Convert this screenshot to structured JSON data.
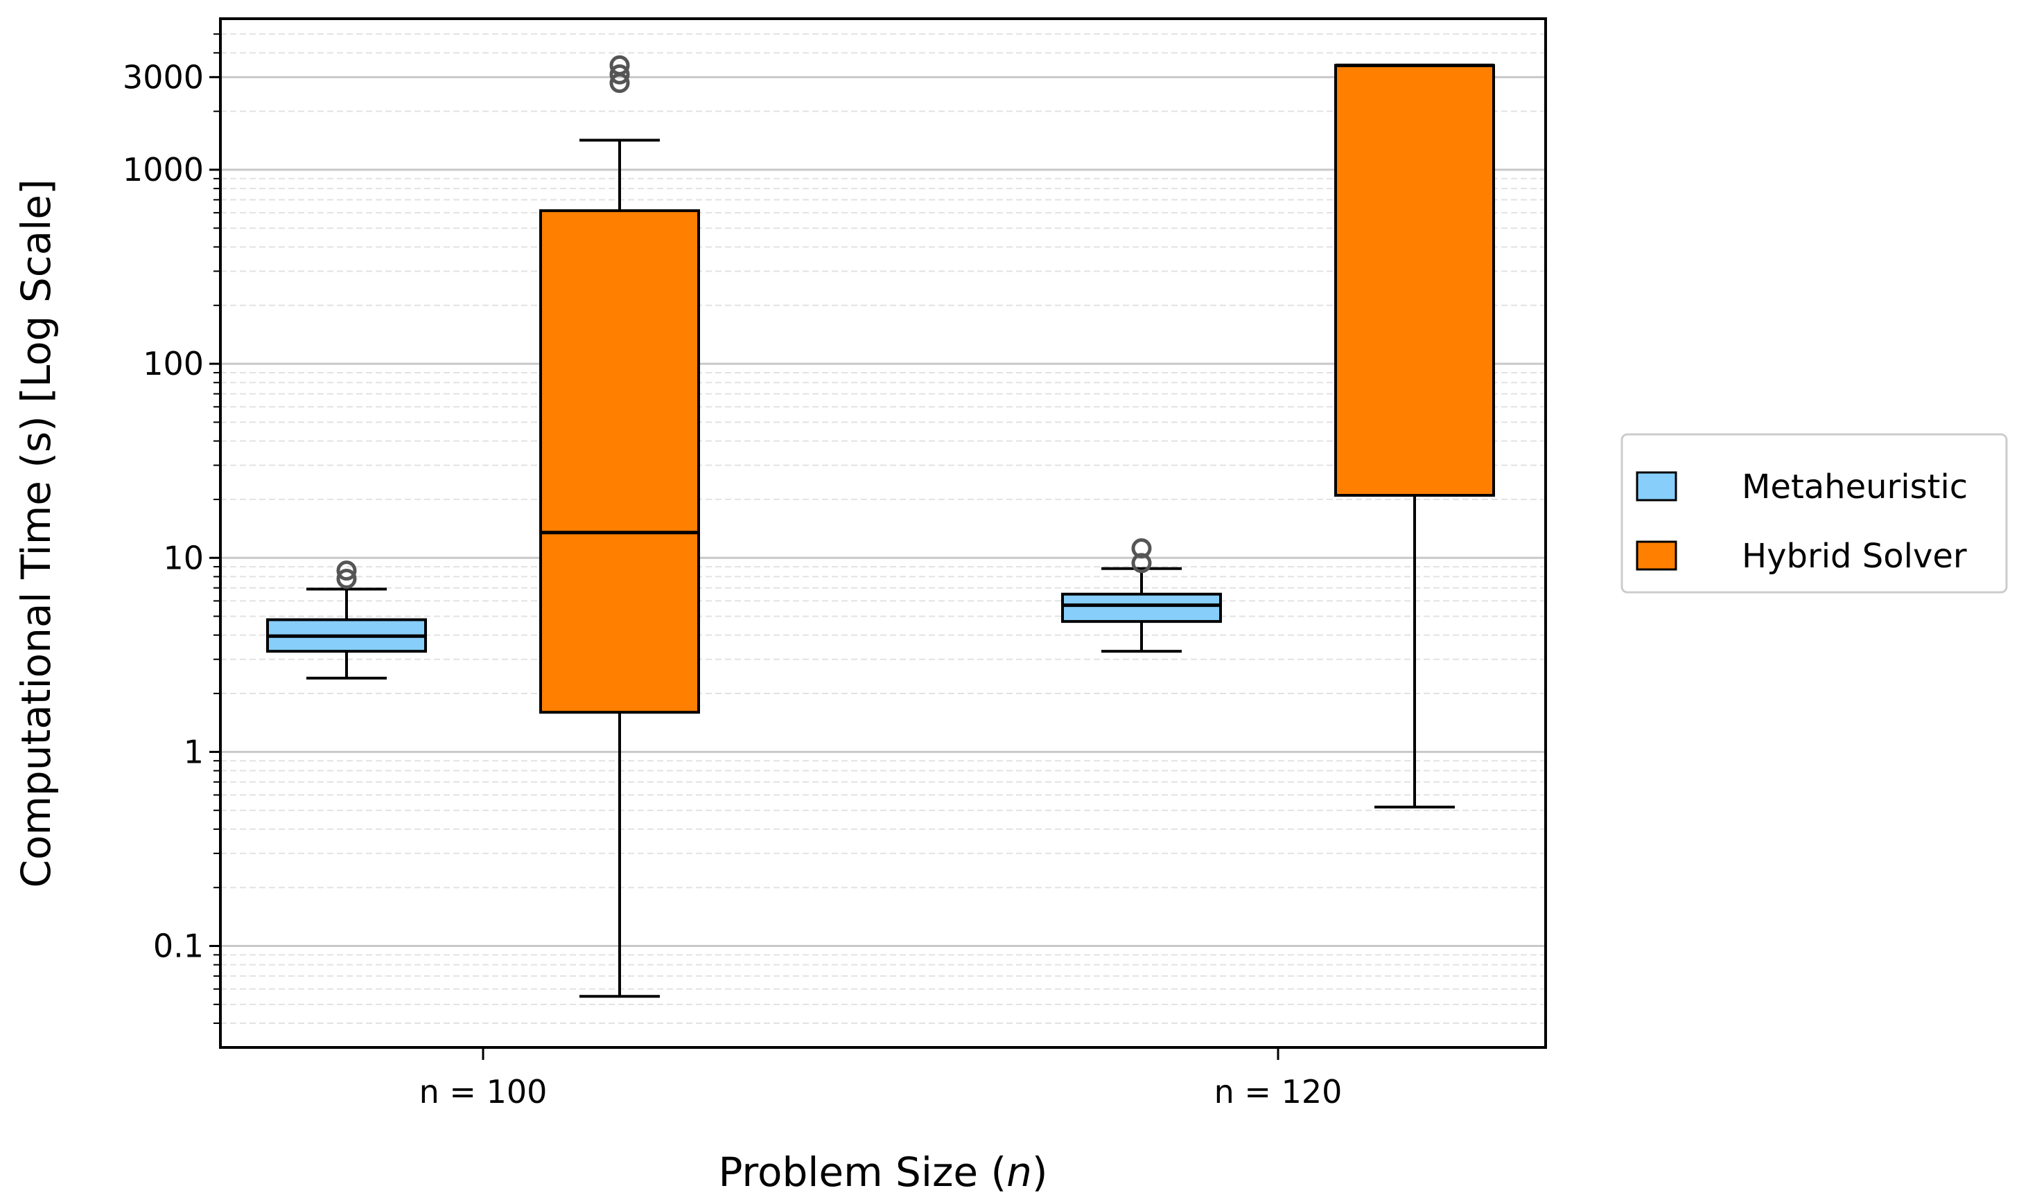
{
  "chart_data": {
    "type": "box",
    "xlabel_prefix": "Problem Size (",
    "xlabel_var": "n",
    "xlabel_suffix": ")",
    "ylabel": "Computational Time (s) [Log Scale]",
    "yscale": "log",
    "ylim": [
      0.03,
      6000
    ],
    "yticks": [
      {
        "value": 0.1,
        "label": "0.1"
      },
      {
        "value": 1,
        "label": "1"
      },
      {
        "value": 10,
        "label": "10"
      },
      {
        "value": 100,
        "label": "100"
      },
      {
        "value": 1000,
        "label": "1000"
      },
      {
        "value": 3000,
        "label": "3000"
      }
    ],
    "grid": true,
    "legend_placement": "right, outside plot",
    "categories": [
      "n = 100",
      "n = 120"
    ],
    "series": [
      {
        "name": "Metaheuristic",
        "color": "#87cefa",
        "boxes": [
          {
            "whisker_low": 2.4,
            "q1": 3.3,
            "median": 3.95,
            "q3": 4.8,
            "whisker_high": 6.9,
            "outliers": [
              7.8,
              8.6
            ]
          },
          {
            "whisker_low": 3.3,
            "q1": 4.7,
            "median": 5.7,
            "q3": 6.5,
            "whisker_high": 8.8,
            "outliers": [
              9.4,
              11.2
            ]
          }
        ]
      },
      {
        "name": "Hybrid Solver",
        "color": "#ff7f00",
        "boxes": [
          {
            "whisker_low": 0.055,
            "q1": 1.6,
            "median": 13.5,
            "q3": 615,
            "whisker_high": 1420,
            "outliers": [
              2800,
              3100,
              3450
            ]
          },
          {
            "whisker_low": 0.52,
            "q1": 21,
            "median": 3450,
            "q3": 3450,
            "whisker_high": 3450,
            "outliers": []
          }
        ]
      }
    ]
  }
}
